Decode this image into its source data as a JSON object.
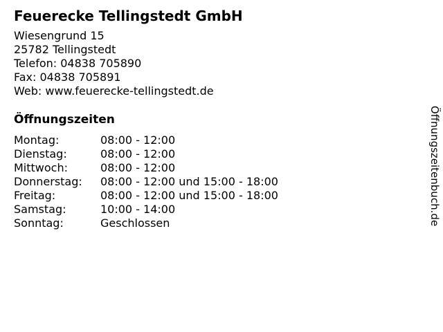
{
  "business": {
    "name": "Feuerecke Tellingstedt GmbH",
    "street": "Wiesengrund 15",
    "city": "25782 Tellingstedt",
    "phone": "Telefon: 04838 705890",
    "fax": "Fax: 04838 705891",
    "web": "Web: www.feuerecke-tellingstedt.de"
  },
  "hours": {
    "heading": "Öffnungszeiten",
    "rows": [
      {
        "day": "Montag:",
        "time": "08:00 - 12:00"
      },
      {
        "day": "Dienstag:",
        "time": "08:00 - 12:00"
      },
      {
        "day": "Mittwoch:",
        "time": "08:00 - 12:00"
      },
      {
        "day": "Donnerstag:",
        "time": "08:00 - 12:00 und 15:00 - 18:00"
      },
      {
        "day": "Freitag:",
        "time": "08:00 - 12:00 und 15:00 - 18:00"
      },
      {
        "day": "Samstag:",
        "time": "10:00 - 14:00"
      },
      {
        "day": "Sonntag:",
        "time": "Geschlossen"
      }
    ]
  },
  "watermark": "Öffnungszeitenbuch.de",
  "colors": {
    "text": "#000000",
    "background": "#ffffff"
  }
}
